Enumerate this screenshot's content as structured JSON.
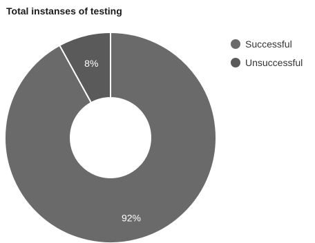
{
  "chart_data": {
    "type": "pie",
    "title": "Total instanses of testing",
    "categories": [
      "Successful",
      "Unsuccessful"
    ],
    "values": [
      92,
      8
    ],
    "value_labels": [
      "92%",
      "8%"
    ],
    "donut": true,
    "legend": "top-right",
    "colors": [
      "#6a6a6a",
      "#5a5a5a"
    ]
  }
}
